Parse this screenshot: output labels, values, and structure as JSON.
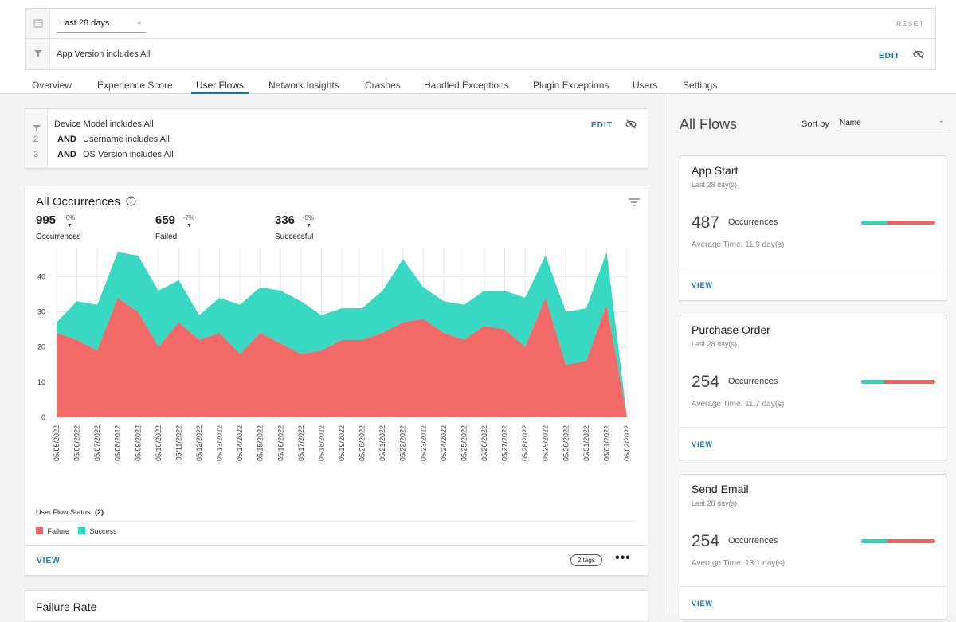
{
  "filters": {
    "date_range": "Last 28 days",
    "reset_label": "RESET",
    "app_version": "App Version includes All",
    "edit_label": "EDIT"
  },
  "tabs": [
    "Overview",
    "Experience Score",
    "User Flows",
    "Network Insights",
    "Crashes",
    "Handled Exceptions",
    "Plugin Exceptions",
    "Users",
    "Settings"
  ],
  "active_tab": "User Flows",
  "local_filter": {
    "line1": "Device Model includes All",
    "line2_num": "2",
    "line2_op": "AND",
    "line2_text": "Username includes All",
    "line3_num": "3",
    "line3_op": "AND",
    "line3_text": "OS Version includes All",
    "edit_label": "EDIT"
  },
  "occurrences_card": {
    "title": "All Occurrences",
    "stats": [
      {
        "value": "995",
        "delta": "-6%",
        "label": "Occurrences"
      },
      {
        "value": "659",
        "delta": "-7%",
        "label": "Failed"
      },
      {
        "value": "336",
        "delta": "-5%",
        "label": "Successful"
      }
    ],
    "legend_title": "User Flow Status",
    "legend_count": "(2)",
    "legend_failure": "Failure",
    "legend_success": "Success",
    "view_label": "VIEW",
    "tags_label": "2 tags"
  },
  "failure_rate_title": "Failure Rate",
  "colors": {
    "failure": "#f0625f",
    "success": "#2dd6c0",
    "accent": "#1a6fb0"
  },
  "chart_data": {
    "type": "area",
    "x": [
      "05/05/2022",
      "05/06/2022",
      "05/07/2022",
      "05/08/2022",
      "05/09/2022",
      "05/10/2022",
      "05/11/2022",
      "05/12/2022",
      "05/13/2022",
      "05/14/2022",
      "05/15/2022",
      "05/16/2022",
      "05/17/2022",
      "05/18/2022",
      "05/19/2022",
      "05/20/2022",
      "05/21/2022",
      "05/22/2022",
      "05/23/2022",
      "05/24/2022",
      "05/25/2022",
      "05/26/2022",
      "05/27/2022",
      "05/28/2022",
      "05/29/2022",
      "05/30/2022",
      "05/31/2022",
      "06/01/2022",
      "06/02/2022"
    ],
    "series": [
      {
        "name": "Failure",
        "values": [
          24,
          22,
          19,
          34,
          30,
          20,
          27,
          22,
          24,
          18,
          24,
          21,
          18,
          19,
          22,
          22,
          24,
          27,
          28,
          24,
          22,
          26,
          25,
          20,
          34,
          15,
          16,
          32,
          0
        ]
      },
      {
        "name": "Success",
        "values": [
          3,
          11,
          13,
          13,
          16,
          16,
          12,
          7,
          10,
          14,
          13,
          15,
          15,
          10,
          9,
          9,
          12,
          18,
          9,
          9,
          10,
          10,
          11,
          14,
          12,
          15,
          15,
          15,
          0
        ]
      }
    ],
    "stacked": true,
    "yticks": [
      0,
      10,
      20,
      30,
      40
    ],
    "ylim": [
      0,
      48
    ],
    "grid": true
  },
  "flows": {
    "title": "All Flows",
    "sort_label": "Sort by",
    "sort_value": "Name",
    "items": [
      {
        "name": "App Start",
        "period": "Last 28 day(s)",
        "count": "487",
        "count_label": "Occurrences",
        "avg": "Average Time: 11.9 day(s)",
        "success_share": 0.35,
        "view": "VIEW"
      },
      {
        "name": "Purchase Order",
        "period": "Last 28 day(s)",
        "count": "254",
        "count_label": "Occurrences",
        "avg": "Average Time: 11.7 day(s)",
        "success_share": 0.3,
        "view": "VIEW"
      },
      {
        "name": "Send Email",
        "period": "Last 28 day(s)",
        "count": "254",
        "count_label": "Occurrences",
        "avg": "Average Time: 13.1 day(s)",
        "success_share": 0.35,
        "view": "VIEW"
      }
    ]
  }
}
